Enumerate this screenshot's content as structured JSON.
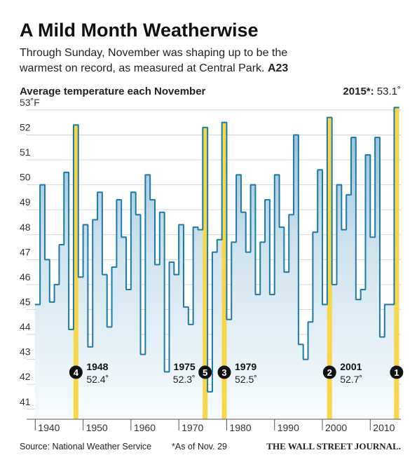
{
  "chart_data": {
    "type": "step",
    "title": "A Mild Month Weatherwise",
    "subtitle_lines": [
      "Through Sunday, November was shaping up to be the",
      "warmest on record, as measured at Central Park."
    ],
    "subtitle_ref": "A23",
    "chart_label": "Average temperature each November",
    "top_label": {
      "year": "2015*:",
      "value": "53.1˚"
    },
    "x": [
      1940,
      1941,
      1942,
      1943,
      1944,
      1945,
      1946,
      1947,
      1948,
      1949,
      1950,
      1951,
      1952,
      1953,
      1954,
      1955,
      1956,
      1957,
      1958,
      1959,
      1960,
      1961,
      1962,
      1963,
      1964,
      1965,
      1966,
      1967,
      1968,
      1969,
      1970,
      1971,
      1972,
      1973,
      1974,
      1975,
      1976,
      1977,
      1978,
      1979,
      1980,
      1981,
      1982,
      1983,
      1984,
      1985,
      1986,
      1987,
      1988,
      1989,
      1990,
      1991,
      1992,
      1993,
      1994,
      1995,
      1996,
      1997,
      1998,
      1999,
      2000,
      2001,
      2002,
      2003,
      2004,
      2005,
      2006,
      2007,
      2008,
      2009,
      2010,
      2011,
      2012,
      2013,
      2014,
      2015
    ],
    "series": [
      {
        "name": "Average temperature",
        "color": "#1c7aa6",
        "values": [
          45.2,
          50.0,
          47.0,
          45.3,
          46.0,
          47.6,
          50.5,
          44.2,
          52.4,
          46.3,
          48.4,
          43.5,
          48.6,
          49.7,
          46.4,
          44.3,
          46.7,
          49.4,
          47.9,
          45.8,
          49.7,
          48.8,
          43.2,
          50.4,
          49.4,
          46.8,
          48.9,
          42.5,
          46.9,
          46.4,
          48.4,
          45.1,
          44.4,
          48.3,
          48.2,
          52.3,
          41.7,
          47.3,
          47.8,
          52.5,
          44.6,
          47.7,
          50.4,
          48.9,
          47.3,
          50.0,
          45.6,
          47.7,
          49.4,
          45.6,
          50.4,
          48.3,
          46.5,
          48.8,
          52.0,
          43.6,
          43.0,
          44.5,
          48.1,
          50.6,
          45.2,
          52.7,
          46.0,
          50.0,
          48.2,
          49.6,
          51.9,
          45.4,
          45.8,
          51.2,
          47.9,
          51.9,
          43.9,
          45.2,
          45.2,
          53.1
        ]
      }
    ],
    "highlight_color": "#f7d64a",
    "annotations": [
      {
        "rank": "4",
        "year": 1948,
        "label": "52.4˚"
      },
      {
        "rank": "5",
        "year": 1975,
        "label": "52.3˚"
      },
      {
        "rank": "3",
        "year": 1979,
        "label": "52.5˚"
      },
      {
        "rank": "2",
        "year": 2001,
        "label": "52.7˚"
      },
      {
        "rank": "1",
        "year": 2015
      }
    ],
    "xlim": [
      1938.2,
      2016.4
    ],
    "xticks": [
      1940,
      1950,
      1960,
      1970,
      1980,
      1990,
      2000,
      2010
    ],
    "ylim": [
      40.6,
      53.25
    ],
    "yticks": [
      41,
      42,
      43,
      44,
      45,
      46,
      47,
      48,
      49,
      50,
      51,
      52,
      {
        "value": 53,
        "label": "53˚F"
      }
    ],
    "grid": true,
    "source": "Source: National Weather Service",
    "note": "*As of Nov. 29",
    "credit": "THE WALL STREET JOURNAL."
  }
}
